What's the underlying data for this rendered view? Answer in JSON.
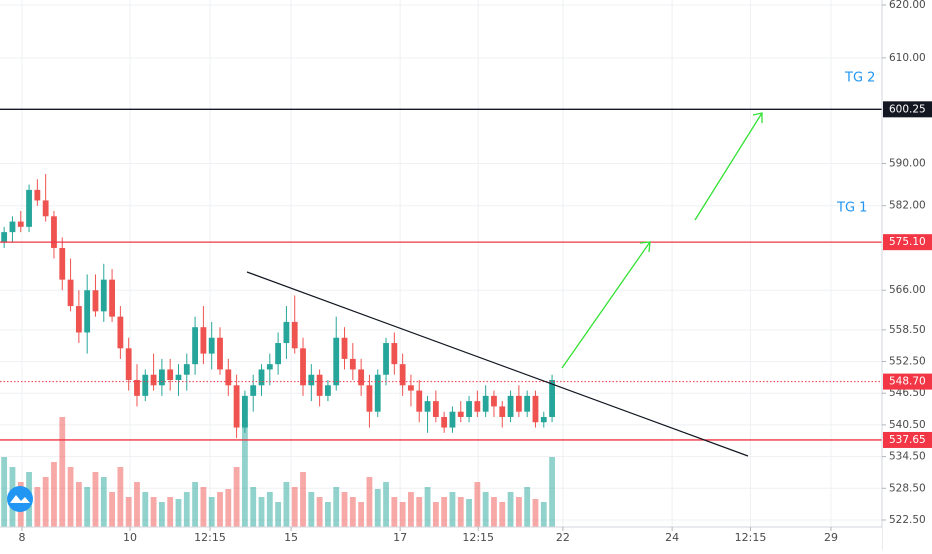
{
  "chart_data": {
    "type": "candlestick",
    "ylim": [
      521.17,
      620.95
    ],
    "xlim": [
      -0.5,
      105.5
    ],
    "yticks": [
      {
        "value": 620,
        "label": "620.00"
      },
      {
        "value": 610,
        "label": "610.00"
      },
      {
        "value": 590,
        "label": "590.00"
      },
      {
        "value": 582,
        "label": "582.00"
      },
      {
        "value": 566,
        "label": "566.00"
      },
      {
        "value": 558.5,
        "label": "558.50"
      },
      {
        "value": 552.5,
        "label": "552.50"
      },
      {
        "value": 546.5,
        "label": "546.50"
      },
      {
        "value": 540.5,
        "label": "540.50"
      },
      {
        "value": 534.5,
        "label": "534.50"
      },
      {
        "value": 528.5,
        "label": "528.50"
      },
      {
        "value": 522.5,
        "label": "522.50"
      }
    ],
    "xticks": [
      {
        "value": 2.15,
        "label": "8"
      },
      {
        "value": 15.16,
        "label": "10"
      },
      {
        "value": 24.8,
        "label": "12:15"
      },
      {
        "value": 34.56,
        "label": "15"
      },
      {
        "value": 47.7,
        "label": "17"
      },
      {
        "value": 57.1,
        "label": "12:15"
      },
      {
        "value": 67.3,
        "label": "22"
      },
      {
        "value": 80.46,
        "label": "24"
      },
      {
        "value": 89.9,
        "label": "12:15"
      },
      {
        "value": 99.6,
        "label": "29"
      }
    ],
    "grid": true,
    "up_color": "#26a69a",
    "down_color": "#ef5350",
    "candles": [
      [
        575,
        578,
        574,
        577
      ],
      [
        577,
        580,
        575,
        579
      ],
      [
        579,
        581,
        577,
        578
      ],
      [
        578,
        586,
        577,
        585
      ],
      [
        585,
        587,
        582,
        583
      ],
      [
        583,
        588,
        579,
        580
      ],
      [
        580,
        581,
        572,
        574
      ],
      [
        574,
        576,
        566,
        568
      ],
      [
        568,
        572,
        562,
        563
      ],
      [
        563,
        566,
        556,
        558
      ],
      [
        558,
        569,
        554,
        566
      ],
      [
        566,
        569,
        561,
        562
      ],
      [
        562,
        571,
        560,
        568
      ],
      [
        568,
        570,
        560,
        561
      ],
      [
        561,
        563,
        553,
        555
      ],
      [
        555,
        557,
        547,
        549
      ],
      [
        549,
        552,
        544,
        546
      ],
      [
        546,
        551,
        545,
        550
      ],
      [
        550,
        554,
        547,
        548
      ],
      [
        548,
        553,
        546,
        551
      ],
      [
        551,
        553,
        547,
        549
      ],
      [
        549,
        552,
        546,
        550
      ],
      [
        550,
        554,
        547,
        552
      ],
      [
        552,
        561,
        550,
        559
      ],
      [
        559,
        563,
        552,
        554
      ],
      [
        554,
        560,
        551,
        557
      ],
      [
        557,
        559,
        550,
        551
      ],
      [
        551,
        553,
        546,
        548
      ],
      [
        548,
        550,
        538,
        540
      ],
      [
        540,
        547,
        539,
        546
      ],
      [
        546,
        550,
        543,
        548
      ],
      [
        548,
        552,
        546,
        551
      ],
      [
        551,
        554,
        548,
        552
      ],
      [
        552,
        558,
        550,
        556
      ],
      [
        556,
        563,
        553,
        560
      ],
      [
        560,
        565,
        554,
        555
      ],
      [
        555,
        557,
        546,
        548
      ],
      [
        548,
        552,
        545,
        550
      ],
      [
        550,
        551,
        544,
        546
      ],
      [
        546,
        549,
        545,
        548
      ],
      [
        548,
        561,
        547,
        557
      ],
      [
        557,
        559,
        551,
        553
      ],
      [
        553,
        556,
        549,
        551
      ],
      [
        551,
        553,
        546,
        548
      ],
      [
        548,
        550,
        540,
        543
      ],
      [
        543,
        551,
        542,
        550
      ],
      [
        550,
        557,
        548,
        556
      ],
      [
        556,
        558,
        550,
        552
      ],
      [
        552,
        554,
        546,
        548
      ],
      [
        548,
        550,
        544,
        547
      ],
      [
        547,
        549,
        541,
        543
      ],
      [
        543,
        546,
        539,
        545
      ],
      [
        545,
        547,
        541,
        542
      ],
      [
        542,
        543,
        539,
        540
      ],
      [
        540,
        544,
        539,
        543
      ],
      [
        543,
        545,
        541,
        542
      ],
      [
        542,
        546,
        541,
        545
      ],
      [
        545,
        547,
        542,
        543
      ],
      [
        543,
        548,
        542,
        546
      ],
      [
        546,
        547,
        542,
        544
      ],
      [
        544,
        545,
        540,
        542
      ],
      [
        542,
        547,
        541,
        546
      ],
      [
        546,
        548,
        542,
        543
      ],
      [
        543,
        547,
        542,
        546
      ],
      [
        546,
        547,
        540,
        541
      ],
      [
        541,
        543,
        540,
        542
      ],
      [
        542,
        550,
        541,
        549
      ]
    ],
    "volume": [
      70,
      60,
      45,
      55,
      40,
      50,
      65,
      110,
      60,
      45,
      40,
      55,
      50,
      35,
      60,
      30,
      45,
      35,
      30,
      25,
      30,
      28,
      35,
      45,
      40,
      30,
      35,
      38,
      60,
      105,
      40,
      30,
      35,
      25,
      45,
      40,
      55,
      35,
      30,
      25,
      40,
      35,
      30,
      25,
      50,
      38,
      45,
      30,
      25,
      35,
      30,
      40,
      25,
      30,
      35,
      30,
      28,
      45,
      35,
      30,
      25,
      35,
      30,
      40,
      28,
      25,
      70
    ],
    "price_lines": [
      {
        "value": 600.25,
        "label": "600.25",
        "color": "#131722",
        "style": "solid"
      },
      {
        "value": 575.1,
        "label": "575.10",
        "color": "#f23645",
        "style": "solid"
      },
      {
        "value": 548.7,
        "label": "548.70",
        "color": "#f23645",
        "style": "dotted"
      },
      {
        "value": 537.65,
        "label": "537.65",
        "color": "#f23645",
        "style": "solid"
      }
    ],
    "annotations": [
      "TG 2",
      "TG 1"
    ]
  }
}
